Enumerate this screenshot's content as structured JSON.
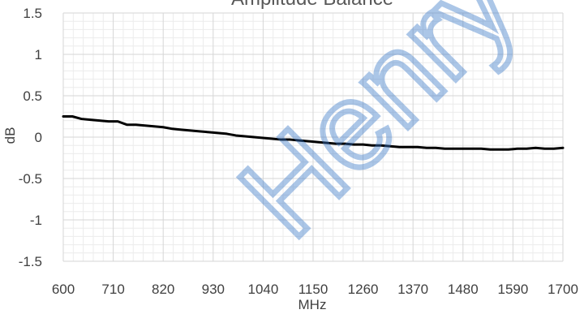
{
  "chart_data": {
    "type": "line",
    "title": "Amplitude Balance",
    "xlabel": "MHz",
    "ylabel": "dB",
    "xlim": [
      600,
      1700
    ],
    "ylim": [
      -1.5,
      1.5
    ],
    "x_ticks": [
      600,
      710,
      820,
      930,
      1040,
      1150,
      1260,
      1370,
      1480,
      1590,
      1700
    ],
    "x_tick_labels": [
      "600",
      "710",
      "820",
      "930",
      "1040",
      "1150",
      "1260",
      "1370",
      "1480",
      "1590",
      "1700"
    ],
    "y_ticks": [
      1.5,
      1,
      0.5,
      0,
      -0.5,
      -1,
      -1.5
    ],
    "y_tick_labels": [
      "1.5",
      "1",
      "0.5",
      "0",
      "-0.5",
      "-1",
      "-1.5"
    ],
    "grid": true,
    "legend": "none",
    "series": [
      {
        "color": "#000000",
        "x": [
          600,
          620,
          640,
          660,
          680,
          700,
          720,
          740,
          760,
          780,
          800,
          820,
          840,
          860,
          880,
          900,
          920,
          940,
          960,
          980,
          1000,
          1020,
          1040,
          1060,
          1080,
          1100,
          1120,
          1140,
          1160,
          1180,
          1200,
          1220,
          1240,
          1260,
          1280,
          1300,
          1320,
          1340,
          1360,
          1380,
          1400,
          1420,
          1440,
          1460,
          1480,
          1500,
          1520,
          1540,
          1560,
          1580,
          1600,
          1620,
          1640,
          1660,
          1680,
          1700
        ],
        "y": [
          0.25,
          0.25,
          0.22,
          0.21,
          0.2,
          0.19,
          0.19,
          0.15,
          0.15,
          0.14,
          0.13,
          0.12,
          0.1,
          0.09,
          0.08,
          0.07,
          0.06,
          0.05,
          0.04,
          0.02,
          0.01,
          0.0,
          -0.01,
          -0.02,
          -0.03,
          -0.03,
          -0.04,
          -0.05,
          -0.06,
          -0.07,
          -0.08,
          -0.08,
          -0.09,
          -0.09,
          -0.1,
          -0.1,
          -0.11,
          -0.12,
          -0.12,
          -0.12,
          -0.13,
          -0.13,
          -0.14,
          -0.14,
          -0.14,
          -0.14,
          -0.14,
          -0.15,
          -0.15,
          -0.15,
          -0.14,
          -0.14,
          -0.13,
          -0.14,
          -0.14,
          -0.13
        ]
      }
    ]
  },
  "watermark": {
    "text": "Henry",
    "color": "#3a78c8"
  }
}
